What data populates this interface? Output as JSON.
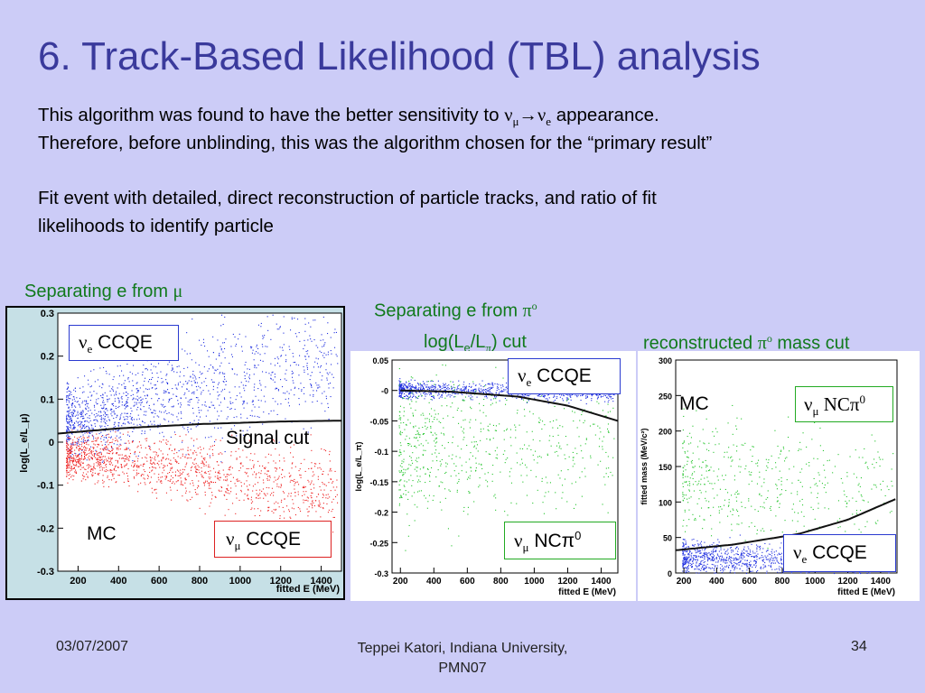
{
  "slide": {
    "title": "6. Track-Based Likelihood (TBL) analysis",
    "line1_pre": "This algorithm was found to have the better sensitivity to ",
    "line1_post": " appearance.",
    "line2": "Therefore, before unblinding, this was the algorithm chosen for the “primary result”",
    "line3": "Fit event with detailed, direct reconstruction of particle tracks, and ratio of fit",
    "line4": "likelihoods to identify particle",
    "numu": "ν",
    "numu_sub": "μ",
    "arrow": "→",
    "nue": "ν",
    "nue_sub": "e"
  },
  "labels": {
    "sep_mu_text": "Separating e from ",
    "sep_mu_sym": "μ",
    "sep_pi_text": "Separating e from ",
    "sep_pi_sym": "π",
    "sep_pi_sup": "o",
    "cut1_pre": "log(L",
    "cut1_sub1": "e",
    "cut1_mid": "/L",
    "cut1_sub2": "π",
    "cut1_post": ") cut",
    "cut2_pre": "reconstructed ",
    "cut2_sym": "π",
    "cut2_sup": "o",
    "cut2_post": " mass cut"
  },
  "footer": {
    "date": "03/07/2007",
    "author_line1": "Teppei Katori, Indiana University,",
    "author_line2": "PMN07",
    "page": "34"
  },
  "colors": {
    "title": "#3a3a9c",
    "green_text": "#117a1c",
    "nue_points": "#1f2fe0",
    "numu_points": "#ee2222",
    "pi0_points": "#22c42a",
    "background": "#ccccf7"
  },
  "chart_data": [
    {
      "type": "scatter",
      "title": "",
      "xlabel": "fitted E (MeV)",
      "ylabel": "log(L_e/L_μ)",
      "xlim": [
        100,
        1500
      ],
      "ylim": [
        -0.3,
        0.3
      ],
      "xticks": [
        "200",
        "400",
        "600",
        "800",
        "1000",
        "1200",
        "1400"
      ],
      "yticks": [
        "0.3",
        "0.2",
        "0.1",
        "0",
        "-0.1",
        "-0.2",
        "-0.3"
      ],
      "series": [
        {
          "name": "ν_e CCQE",
          "color": "#1f2fe0",
          "trend_x": [
            150,
            400,
            700,
            1000,
            1450
          ],
          "trend_y": [
            0.05,
            0.075,
            0.11,
            0.15,
            0.19
          ],
          "spread": 0.04
        },
        {
          "name": "ν_μ CCQE",
          "color": "#ee2222",
          "trend_x": [
            150,
            400,
            700,
            1000,
            1450
          ],
          "trend_y": [
            -0.03,
            -0.04,
            -0.06,
            -0.09,
            -0.12
          ],
          "spread": 0.025
        }
      ],
      "cut_curve": {
        "x": [
          100,
          400,
          800,
          1200,
          1500
        ],
        "y": [
          0.02,
          0.032,
          0.042,
          0.048,
          0.05
        ]
      },
      "annotations": {
        "signal_cut": "Signal cut",
        "mc": "MC"
      },
      "legend": [
        {
          "sym": "ν",
          "sub": "e",
          "text": " CCQE",
          "border": "#2a3ad0"
        },
        {
          "sym": "ν",
          "sub": "μ",
          "text": " CCQE",
          "border": "#dd2222"
        }
      ]
    },
    {
      "type": "scatter",
      "title": "",
      "xlabel": "fitted E (MeV)",
      "ylabel": "log(L_e/L_π)",
      "xlim": [
        150,
        1500
      ],
      "ylim": [
        -0.3,
        0.05
      ],
      "xticks": [
        "200",
        "400",
        "600",
        "800",
        "1000",
        "1200",
        "1400"
      ],
      "yticks": [
        "0.05",
        "-0",
        "-0.05",
        "-0.1",
        "-0.15",
        "-0.2",
        "-0.25",
        "-0.3"
      ],
      "series": [
        {
          "name": "ν_e CCQE",
          "color": "#1f2fe0",
          "trend_x": [
            200,
            800,
            1400
          ],
          "trend_y": [
            0.003,
            0.0,
            -0.005
          ],
          "spread": 0.007
        },
        {
          "name": "ν_μ NCπ0",
          "color": "#22c42a",
          "trend_x": [
            200,
            600,
            1000,
            1400
          ],
          "trend_y": [
            -0.08,
            -0.1,
            -0.08,
            -0.06
          ],
          "spread": 0.06
        }
      ],
      "cut_curve": {
        "x": [
          200,
          500,
          900,
          1200,
          1500
        ],
        "y": [
          0.0,
          -0.002,
          -0.01,
          -0.025,
          -0.05
        ]
      },
      "legend": [
        {
          "sym": "ν",
          "sub": "e",
          "text": " CCQE",
          "border": "#2a3ad0"
        },
        {
          "sym": "ν",
          "sub": "μ",
          "text": " NCπ",
          "sup": "0",
          "border": "#22aa22"
        }
      ]
    },
    {
      "type": "scatter",
      "title": "",
      "xlabel": "fitted E (MeV)",
      "ylabel": "fitted mass (MeV/c²)",
      "xlim": [
        150,
        1500
      ],
      "ylim": [
        0,
        300
      ],
      "xticks": [
        "200",
        "400",
        "600",
        "800",
        "1000",
        "1200",
        "1400"
      ],
      "yticks": [
        "300",
        "250",
        "200",
        "150",
        "100",
        "50",
        "0"
      ],
      "series": [
        {
          "name": "ν_μ NCπ0",
          "color": "#22c42a",
          "trend_x": [
            300,
            500,
            700
          ],
          "trend_y": [
            140,
            135,
            120
          ],
          "spread": 40
        },
        {
          "name": "ν_e CCQE",
          "color": "#1f2fe0",
          "trend_x": [
            200,
            800,
            1400
          ],
          "trend_y": [
            20,
            18,
            15
          ],
          "spread": 12
        }
      ],
      "cut_curve": {
        "x": [
          150,
          500,
          900,
          1200,
          1500
        ],
        "y": [
          32,
          40,
          55,
          75,
          105
        ]
      },
      "annotations": {
        "mc": "MC"
      },
      "legend": [
        {
          "sym": "ν",
          "sub": "μ",
          "text": " NCπ",
          "sup": "0",
          "border": "#22aa22"
        },
        {
          "sym": "ν",
          "sub": "e",
          "text": " CCQE",
          "border": "#2a3ad0"
        }
      ]
    }
  ]
}
